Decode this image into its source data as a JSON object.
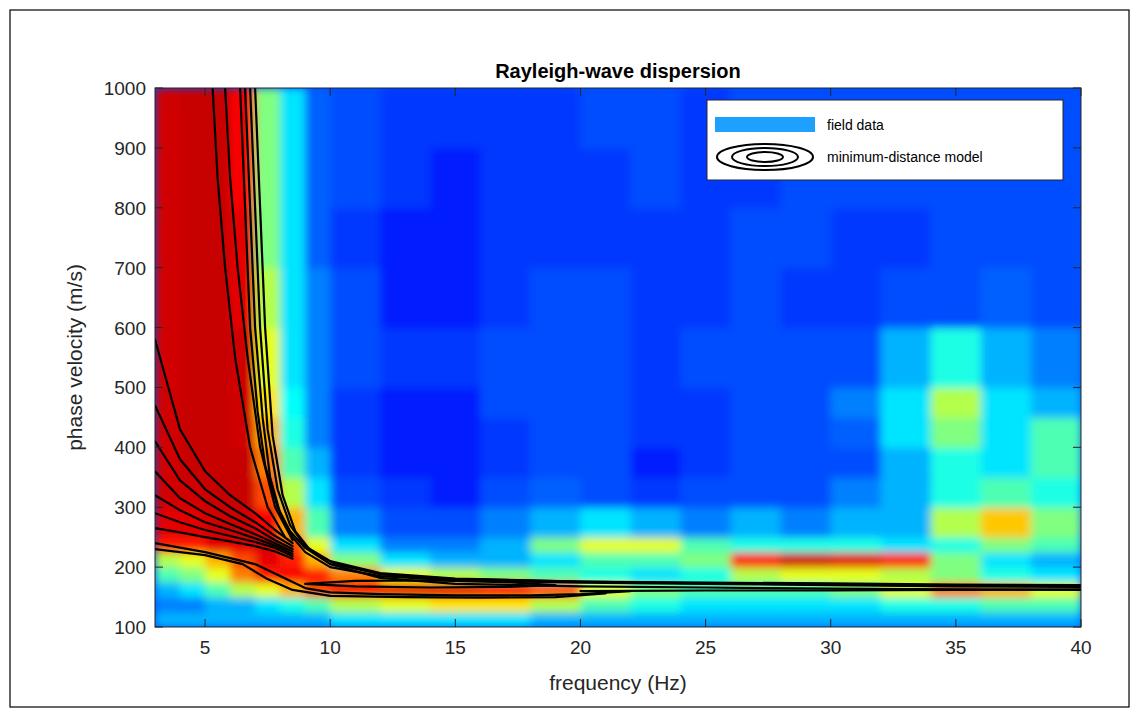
{
  "chart_data": {
    "type": "heatmap",
    "title": "Rayleigh-wave dispersion",
    "x_label": "frequency (Hz)",
    "y_label": "phase velocity (m/s)",
    "xlim": [
      3,
      40
    ],
    "ylim": [
      100,
      1000
    ],
    "xticks": [
      5,
      10,
      15,
      20,
      25,
      30,
      35,
      40
    ],
    "yticks": [
      100,
      200,
      300,
      400,
      500,
      600,
      700,
      800,
      900,
      1000
    ],
    "grid": false,
    "legend": "upper right",
    "heatmap": {
      "name": "field data",
      "color": "#1ea0ff",
      "clim": [
        0,
        1
      ],
      "x_edges": [
        3,
        4,
        5,
        6,
        7,
        8,
        9,
        10,
        12,
        14,
        16,
        18,
        20,
        22,
        24,
        26,
        28,
        30,
        32,
        34,
        36,
        38,
        40
      ],
      "y_edges": [
        100,
        125,
        150,
        175,
        200,
        225,
        250,
        300,
        350,
        400,
        450,
        500,
        600,
        700,
        800,
        900,
        1000
      ],
      "cells": [
        [
          0.3,
          0.3,
          0.3,
          0.3,
          0.3,
          0.3,
          0.3,
          0.35,
          0.35,
          0.35,
          0.35,
          0.3,
          0.3,
          0.3,
          0.3,
          0.3,
          0.3,
          0.3,
          0.3,
          0.3,
          0.3,
          0.3
        ],
        [
          0.25,
          0.25,
          0.3,
          0.3,
          0.35,
          0.4,
          0.45,
          0.55,
          0.6,
          0.65,
          0.65,
          0.55,
          0.45,
          0.4,
          0.35,
          0.35,
          0.35,
          0.35,
          0.4,
          0.4,
          0.45,
          0.45
        ],
        [
          0.3,
          0.35,
          0.45,
          0.55,
          0.6,
          0.7,
          0.8,
          0.88,
          0.9,
          0.9,
          0.88,
          0.8,
          0.6,
          0.5,
          0.45,
          0.45,
          0.45,
          0.5,
          0.6,
          0.75,
          0.7,
          0.6
        ],
        [
          0.45,
          0.5,
          0.6,
          0.75,
          0.85,
          0.88,
          0.85,
          0.75,
          0.6,
          0.55,
          0.5,
          0.45,
          0.4,
          0.35,
          0.4,
          0.55,
          0.6,
          0.6,
          0.55,
          0.5,
          0.4,
          0.35
        ],
        [
          0.55,
          0.6,
          0.7,
          0.8,
          0.9,
          0.85,
          0.7,
          0.5,
          0.35,
          0.3,
          0.3,
          0.35,
          0.45,
          0.45,
          0.5,
          0.85,
          0.92,
          0.9,
          0.85,
          0.5,
          0.35,
          0.3
        ],
        [
          0.85,
          0.85,
          0.9,
          0.9,
          0.9,
          0.8,
          0.6,
          0.35,
          0.25,
          0.25,
          0.3,
          0.5,
          0.6,
          0.6,
          0.45,
          0.4,
          0.4,
          0.4,
          0.35,
          0.4,
          0.5,
          0.45
        ],
        [
          0.9,
          0.9,
          0.92,
          0.92,
          0.88,
          0.7,
          0.45,
          0.25,
          0.2,
          0.2,
          0.25,
          0.3,
          0.35,
          0.3,
          0.25,
          0.3,
          0.25,
          0.3,
          0.3,
          0.55,
          0.68,
          0.5
        ],
        [
          0.92,
          0.92,
          0.93,
          0.93,
          0.8,
          0.55,
          0.35,
          0.2,
          0.18,
          0.15,
          0.2,
          0.22,
          0.2,
          0.18,
          0.2,
          0.2,
          0.2,
          0.25,
          0.3,
          0.4,
          0.45,
          0.4
        ],
        [
          0.92,
          0.93,
          0.93,
          0.93,
          0.75,
          0.45,
          0.3,
          0.18,
          0.15,
          0.15,
          0.18,
          0.2,
          0.2,
          0.15,
          0.18,
          0.2,
          0.2,
          0.2,
          0.3,
          0.4,
          0.35,
          0.45
        ],
        [
          0.92,
          0.93,
          0.93,
          0.92,
          0.7,
          0.4,
          0.25,
          0.18,
          0.15,
          0.15,
          0.18,
          0.2,
          0.2,
          0.18,
          0.18,
          0.2,
          0.2,
          0.22,
          0.35,
          0.5,
          0.35,
          0.45
        ],
        [
          0.92,
          0.93,
          0.93,
          0.92,
          0.65,
          0.38,
          0.25,
          0.18,
          0.15,
          0.15,
          0.2,
          0.2,
          0.2,
          0.18,
          0.18,
          0.2,
          0.2,
          0.25,
          0.35,
          0.55,
          0.35,
          0.3
        ],
        [
          0.92,
          0.93,
          0.93,
          0.92,
          0.6,
          0.35,
          0.25,
          0.2,
          0.18,
          0.18,
          0.2,
          0.2,
          0.2,
          0.18,
          0.2,
          0.2,
          0.2,
          0.2,
          0.3,
          0.4,
          0.3,
          0.25
        ],
        [
          0.92,
          0.93,
          0.93,
          0.9,
          0.55,
          0.35,
          0.25,
          0.2,
          0.15,
          0.15,
          0.18,
          0.2,
          0.2,
          0.18,
          0.18,
          0.2,
          0.18,
          0.18,
          0.2,
          0.2,
          0.22,
          0.2
        ],
        [
          0.92,
          0.93,
          0.93,
          0.9,
          0.5,
          0.35,
          0.22,
          0.18,
          0.15,
          0.15,
          0.18,
          0.18,
          0.18,
          0.18,
          0.18,
          0.2,
          0.2,
          0.18,
          0.18,
          0.2,
          0.2,
          0.2
        ],
        [
          0.92,
          0.93,
          0.93,
          0.88,
          0.5,
          0.35,
          0.22,
          0.2,
          0.18,
          0.15,
          0.18,
          0.18,
          0.18,
          0.2,
          0.18,
          0.18,
          0.2,
          0.2,
          0.2,
          0.2,
          0.2,
          0.2
        ],
        [
          0.92,
          0.93,
          0.93,
          0.88,
          0.5,
          0.35,
          0.22,
          0.2,
          0.18,
          0.18,
          0.18,
          0.18,
          0.2,
          0.2,
          0.18,
          0.2,
          0.2,
          0.2,
          0.2,
          0.2,
          0.2,
          0.2
        ]
      ]
    },
    "series": [
      {
        "name": "minimum-distance model",
        "type": "line",
        "color": "#000000",
        "lines": [
          {
            "x": [
              6.6,
              6.8,
              7.0,
              7.3,
              7.6,
              8.0,
              8.5,
              9,
              10,
              12,
              15,
              20,
              25,
              30,
              35,
              40
            ],
            "y": [
              1000,
              800,
              600,
              450,
              350,
              290,
              250,
              225,
              200,
              185,
              178,
              174,
              172,
              170,
              168,
              167
            ]
          },
          {
            "x": [
              6.8,
              7.0,
              7.2,
              7.5,
              7.9,
              8.4,
              9,
              10,
              12,
              15,
              20,
              25,
              30,
              35,
              40
            ],
            "y": [
              1000,
              800,
              600,
              430,
              330,
              270,
              235,
              210,
              190,
              181,
              176,
              173,
              171,
              169,
              168
            ]
          },
          {
            "x": [
              7.0,
              7.2,
              7.4,
              7.7,
              8.1,
              8.6,
              9.2,
              10.2,
              12,
              15,
              20,
              25,
              30,
              35,
              40
            ],
            "y": [
              1000,
              800,
              600,
              420,
              320,
              260,
              228,
              205,
              188,
              180,
              176,
              174,
              173,
              171,
              170
            ]
          },
          {
            "x": [
              6.4,
              6.6,
              6.8,
              7.1,
              7.4,
              7.9,
              8.4,
              9,
              10,
              12,
              15,
              20,
              25,
              30,
              35,
              40
            ],
            "y": [
              1000,
              800,
              600,
              460,
              370,
              300,
              260,
              232,
              205,
              182,
              172,
              168,
              166,
              164,
              163,
              162
            ]
          },
          {
            "x": [
              5.3,
              5.5,
              5.8,
              6.2,
              6.8,
              7.5,
              8.2
            ],
            "y": [
              1000,
              850,
              700,
              550,
              400,
              300,
              250
            ]
          },
          {
            "x": [
              5.8,
              6.0,
              6.3,
              6.7,
              7.2,
              7.8,
              8.5
            ],
            "y": [
              1000,
              850,
              700,
              550,
              400,
              300,
              245
            ]
          },
          {
            "x": [
              3,
              4,
              5,
              6,
              7,
              7.8,
              8.5
            ],
            "y": [
              580,
              430,
              360,
              320,
              290,
              262,
              240
            ]
          },
          {
            "x": [
              3,
              4,
              5,
              6,
              7,
              7.8,
              8.5
            ],
            "y": [
              470,
              380,
              330,
              300,
              275,
              252,
              235
            ]
          },
          {
            "x": [
              3,
              4,
              5,
              6,
              7,
              7.8,
              8.5
            ],
            "y": [
              410,
              345,
              310,
              285,
              265,
              245,
              230
            ]
          },
          {
            "x": [
              3,
              4,
              5,
              6,
              7,
              7.8,
              8.5
            ],
            "y": [
              360,
              315,
              290,
              272,
              255,
              240,
              226
            ]
          },
          {
            "x": [
              3,
              4,
              5,
              6,
              7,
              7.8,
              8.5
            ],
            "y": [
              320,
              295,
              275,
              262,
              248,
              236,
              222
            ]
          },
          {
            "x": [
              3,
              4,
              5,
              6,
              7,
              7.8,
              8.5
            ],
            "y": [
              290,
              275,
              262,
              252,
              242,
              232,
              218
            ]
          },
          {
            "x": [
              3,
              4,
              5,
              6,
              7,
              7.8,
              8.5
            ],
            "y": [
              265,
              258,
              250,
              243,
              235,
              226,
              214
            ]
          },
          {
            "x": [
              3,
              5,
              7,
              8,
              9,
              10,
              12,
              15,
              18,
              20,
              22
            ],
            "y": [
              240,
              225,
              205,
              185,
              165,
              158,
              155,
              153,
              153,
              155,
              160
            ]
          },
          {
            "x": [
              3,
              5,
              6.5,
              7.5,
              8.5,
              10,
              13,
              16,
              19,
              21
            ],
            "y": [
              230,
              220,
              205,
              180,
              162,
              152,
              150,
              149,
              150,
              156
            ]
          },
          {
            "x": [
              9,
              11,
              14,
              17,
              19,
              17,
              14,
              11,
              9
            ],
            "y": [
              172,
              168,
              166,
              167,
              170,
              175,
              178,
              177,
              172
            ]
          },
          {
            "x": [
              20,
              25,
              30,
              35,
              40
            ],
            "y": [
              160,
              161,
              161,
              162,
              163
            ]
          }
        ]
      }
    ]
  }
}
